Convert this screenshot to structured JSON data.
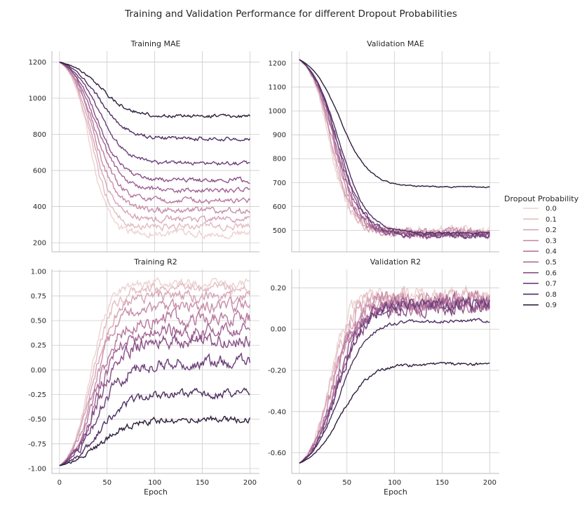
{
  "figure": {
    "title": "Training and Validation Performance for different Dropout Probabilities"
  },
  "legend": {
    "title": "Dropout Probability",
    "entries": [
      "0.0",
      "0.1",
      "0.2",
      "0.3",
      "0.4",
      "0.5",
      "0.6",
      "0.7",
      "0.8",
      "0.9"
    ],
    "colors": [
      "#ecd3d1",
      "#e2bcc2",
      "#d6a4b7",
      "#c78ea9",
      "#b7789f",
      "#a16395",
      "#885187",
      "#6b3f78",
      "#4d2f60",
      "#2e1e3b"
    ]
  },
  "chart_data": [
    {
      "type": "line",
      "title": "Training MAE",
      "xlabel": "",
      "xlim": [
        -8,
        210
      ],
      "ylim": [
        150,
        1260
      ],
      "xticks": [
        0,
        50,
        100,
        150,
        200
      ],
      "yticks": [
        200,
        400,
        600,
        800,
        1000,
        1200
      ],
      "show_xtick_labels": false,
      "show_xlabel": false,
      "grid": true,
      "start": 1200,
      "series": [
        {
          "name": "0.0",
          "plateau": 250,
          "noise": 14
        },
        {
          "name": "0.1",
          "plateau": 290,
          "noise": 13
        },
        {
          "name": "0.2",
          "plateau": 330,
          "noise": 12
        },
        {
          "name": "0.3",
          "plateau": 380,
          "noise": 12
        },
        {
          "name": "0.4",
          "plateau": 430,
          "noise": 11
        },
        {
          "name": "0.5",
          "plateau": 490,
          "noise": 10
        },
        {
          "name": "0.6",
          "plateau": 545,
          "noise": 9
        },
        {
          "name": "0.7",
          "plateau": 640,
          "noise": 8
        },
        {
          "name": "0.8",
          "plateau": 775,
          "noise": 8
        },
        {
          "name": "0.9",
          "plateau": 900,
          "noise": 7
        }
      ]
    },
    {
      "type": "line",
      "title": "Validation MAE",
      "xlabel": "",
      "xlim": [
        -8,
        210
      ],
      "ylim": [
        410,
        1250
      ],
      "xticks": [
        0,
        50,
        100,
        150,
        200
      ],
      "yticks": [
        500,
        600,
        700,
        800,
        900,
        1000,
        1100,
        1200
      ],
      "show_xtick_labels": false,
      "show_xlabel": false,
      "grid": true,
      "start": 1215,
      "series": [
        {
          "name": "0.0",
          "plateau": 500,
          "noise": 14
        },
        {
          "name": "0.1",
          "plateau": 495,
          "noise": 13
        },
        {
          "name": "0.2",
          "plateau": 490,
          "noise": 12
        },
        {
          "name": "0.3",
          "plateau": 488,
          "noise": 12
        },
        {
          "name": "0.4",
          "plateau": 485,
          "noise": 11
        },
        {
          "name": "0.5",
          "plateau": 482,
          "noise": 10
        },
        {
          "name": "0.6",
          "plateau": 480,
          "noise": 9
        },
        {
          "name": "0.7",
          "plateau": 478,
          "noise": 8
        },
        {
          "name": "0.8",
          "plateau": 490,
          "noise": 3
        },
        {
          "name": "0.9",
          "plateau": 682,
          "noise": 2
        }
      ]
    },
    {
      "type": "line",
      "title": "Training R2",
      "xlabel": "Epoch",
      "xlim": [
        -8,
        210
      ],
      "ylim": [
        -1.05,
        1.02
      ],
      "xticks": [
        0,
        50,
        100,
        150,
        200
      ],
      "yticks": [
        -1.0,
        -0.75,
        -0.5,
        -0.25,
        0.0,
        0.25,
        0.5,
        0.75,
        1.0
      ],
      "show_xtick_labels": true,
      "show_xlabel": true,
      "grid": true,
      "start": -0.97,
      "series": [
        {
          "name": "0.0",
          "plateau": 0.88,
          "noise": 0.03
        },
        {
          "name": "0.1",
          "plateau": 0.82,
          "noise": 0.035
        },
        {
          "name": "0.2",
          "plateau": 0.74,
          "noise": 0.04
        },
        {
          "name": "0.3",
          "plateau": 0.65,
          "noise": 0.045
        },
        {
          "name": "0.4",
          "plateau": 0.52,
          "noise": 0.05
        },
        {
          "name": "0.5",
          "plateau": 0.4,
          "noise": 0.05
        },
        {
          "name": "0.6",
          "plateau": 0.3,
          "noise": 0.05
        },
        {
          "name": "0.7",
          "plateau": 0.08,
          "noise": 0.045
        },
        {
          "name": "0.8",
          "plateau": -0.24,
          "noise": 0.03
        },
        {
          "name": "0.9",
          "plateau": -0.5,
          "noise": 0.025
        }
      ]
    },
    {
      "type": "line",
      "title": "Validation R2",
      "xlabel": "Epoch",
      "xlim": [
        -8,
        210
      ],
      "ylim": [
        -0.7,
        0.29
      ],
      "xticks": [
        0,
        50,
        100,
        150,
        200
      ],
      "yticks": [
        -0.6,
        -0.4,
        -0.2,
        0.0,
        0.2
      ],
      "show_xtick_labels": true,
      "show_xlabel": true,
      "grid": true,
      "start": -0.65,
      "series": [
        {
          "name": "0.0",
          "plateau": 0.16,
          "noise": 0.03
        },
        {
          "name": "0.1",
          "plateau": 0.15,
          "noise": 0.03
        },
        {
          "name": "0.2",
          "plateau": 0.14,
          "noise": 0.035
        },
        {
          "name": "0.3",
          "plateau": 0.13,
          "noise": 0.035
        },
        {
          "name": "0.4",
          "plateau": 0.12,
          "noise": 0.03
        },
        {
          "name": "0.5",
          "plateau": 0.12,
          "noise": 0.03
        },
        {
          "name": "0.6",
          "plateau": 0.11,
          "noise": 0.025
        },
        {
          "name": "0.7",
          "plateau": 0.12,
          "noise": 0.02
        },
        {
          "name": "0.8",
          "plateau": 0.04,
          "noise": 0.006
        },
        {
          "name": "0.9",
          "plateau": -0.17,
          "noise": 0.005
        }
      ]
    }
  ]
}
